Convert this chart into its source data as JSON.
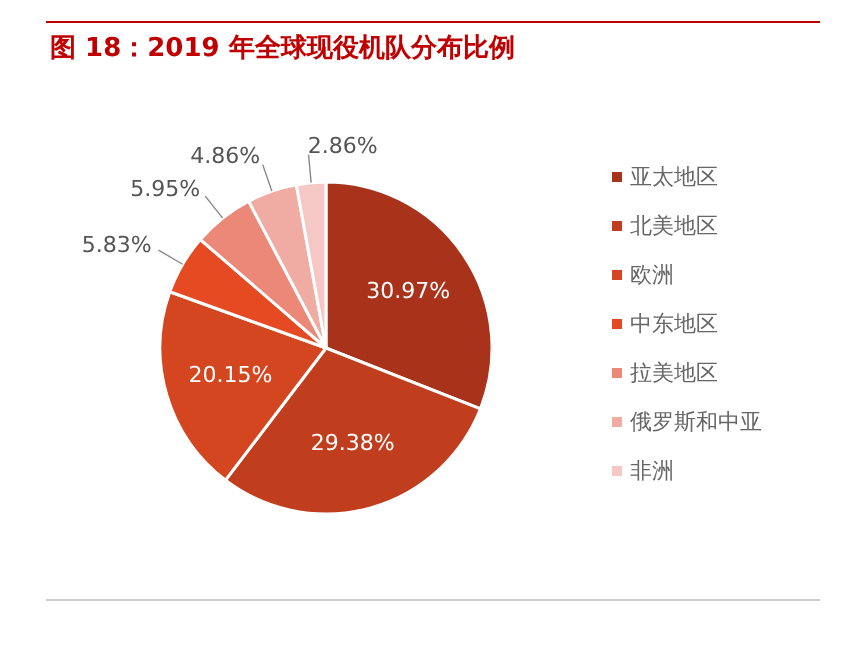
{
  "chart_data": {
    "type": "pie",
    "title": "图 18：2019 年全球现役机队分布比例",
    "categories": [
      "亚太地区",
      "北美地区",
      "欧洲",
      "中东地区",
      "拉美地区",
      "俄罗斯和中亚",
      "非洲"
    ],
    "values": [
      30.97,
      29.38,
      20.15,
      5.83,
      5.95,
      4.86,
      2.86
    ],
    "colors": [
      "#a8321a",
      "#c03d1e",
      "#d4461f",
      "#e64a22",
      "#ec8878",
      "#f0aba3",
      "#f5c8c6"
    ],
    "value_labels": [
      "30.97%",
      "29.38%",
      "20.15%",
      "5.83%",
      "5.95%",
      "4.86%",
      "2.86%"
    ],
    "legend": "right"
  }
}
